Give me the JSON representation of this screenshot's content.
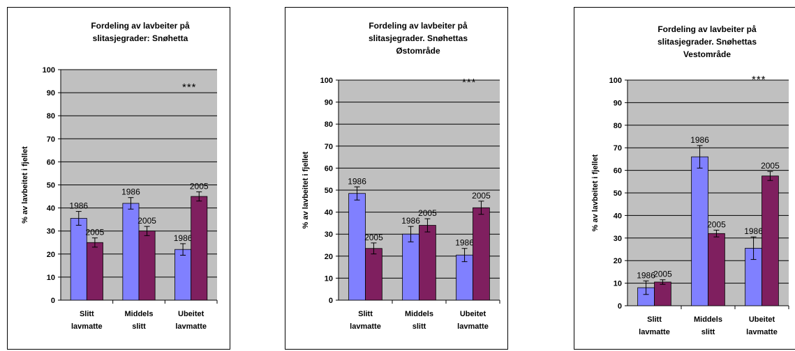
{
  "colors": {
    "plot_bg": "#c0c0c0",
    "grid": "#000000",
    "series_1986": "#8080ff",
    "series_2005": "#7f1f5f",
    "error_bar": "#000000"
  },
  "chart_data": [
    {
      "type": "bar",
      "title_lines": [
        "Fordeling av lavbeiter på",
        "slitasjegrader: Snøhetta"
      ],
      "ylabel": "% av lavbeitet i fjellet",
      "ylim": [
        0,
        100
      ],
      "yticks": [
        "0",
        "10",
        "20",
        "30",
        "40",
        "50",
        "60",
        "70",
        "80",
        "90",
        "100"
      ],
      "categories": [
        [
          "Slitt",
          "lavmatte"
        ],
        [
          "Middels",
          "slitt"
        ],
        [
          "Ubeitet",
          "lavmatte"
        ]
      ],
      "series": [
        {
          "label": "1986",
          "values": [
            35.5,
            42,
            22
          ],
          "errors": [
            3,
            2.5,
            2.5
          ]
        },
        {
          "label": "2005",
          "values": [
            25,
            30,
            45
          ],
          "errors": [
            2,
            2,
            2
          ]
        }
      ],
      "grid": true,
      "significance": "***"
    },
    {
      "type": "bar",
      "title_lines": [
        "Fordeling av lavbeiter på",
        "slitasjegrader.  Snøhettas",
        "Østområde"
      ],
      "ylabel": "% av lavbeitet i fjellet",
      "ylim": [
        0,
        100
      ],
      "yticks": [
        "0",
        "10",
        "20",
        "30",
        "40",
        "50",
        "60",
        "70",
        "80",
        "90",
        "100"
      ],
      "categories": [
        [
          "Slitt",
          "lavmatte"
        ],
        [
          "Middels",
          "slitt"
        ],
        [
          "Ubeitet",
          "lavmatte"
        ]
      ],
      "series": [
        {
          "label": "1986",
          "values": [
            48.5,
            30,
            20.5
          ],
          "errors": [
            3,
            3.5,
            3
          ]
        },
        {
          "label": "2005",
          "values": [
            23.5,
            34,
            42
          ],
          "errors": [
            2.5,
            3,
            3
          ]
        }
      ],
      "grid": true,
      "significance": "***"
    },
    {
      "type": "bar",
      "title_lines": [
        "Fordeling av lavbeiter på",
        "slitasjegrader.  Snøhettas",
        "Vestområde"
      ],
      "ylabel": "% av lavbeitet i fjellet",
      "ylim": [
        0,
        100
      ],
      "yticks": [
        "0",
        "10",
        "20",
        "30",
        "40",
        "50",
        "60",
        "70",
        "80",
        "90",
        "100"
      ],
      "categories": [
        [
          "Slitt",
          "lavmatte"
        ],
        [
          "Middels",
          "slitt"
        ],
        [
          "Ubeitet",
          "lavmatte"
        ]
      ],
      "series": [
        {
          "label": "1986",
          "values": [
            8,
            66,
            25.5
          ],
          "errors": [
            3,
            5,
            5
          ]
        },
        {
          "label": "2005",
          "values": [
            10.5,
            32,
            57.5
          ],
          "errors": [
            1,
            1.5,
            2
          ]
        }
      ],
      "grid": true,
      "significance": "***"
    }
  ]
}
